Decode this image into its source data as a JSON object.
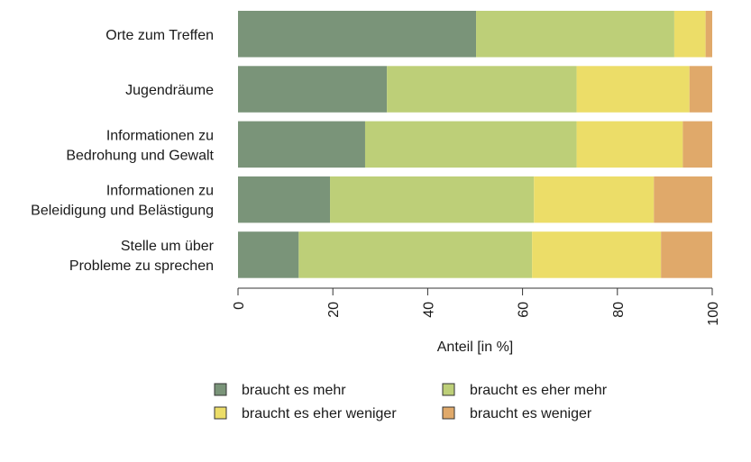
{
  "chart_data": {
    "type": "bar",
    "orientation": "horizontal",
    "stacked": true,
    "categories": [
      [
        "Orte zum Treffen"
      ],
      [
        "Jugendräume"
      ],
      [
        "Informationen zu",
        "Bedrohung und Gewalt"
      ],
      [
        "Informationen zu",
        "Beleidigung und Belästigung"
      ],
      [
        "Stelle um über",
        "Probleme zu sprechen"
      ]
    ],
    "series": [
      {
        "name": "braucht es mehr",
        "color": "#7a9479",
        "values": [
          50.2,
          31.4,
          26.8,
          19.4,
          12.8
        ]
      },
      {
        "name": "braucht es eher mehr",
        "color": "#bdcf78",
        "values": [
          41.8,
          40.0,
          44.6,
          43.0,
          49.2
        ]
      },
      {
        "name": "braucht es eher weniger",
        "color": "#ecdd68",
        "values": [
          6.6,
          23.8,
          22.4,
          25.3,
          27.2
        ]
      },
      {
        "name": "braucht es weniger",
        "color": "#e0a96a",
        "values": [
          1.4,
          4.8,
          6.2,
          12.3,
          10.8
        ]
      }
    ],
    "xlim": [
      0,
      100
    ],
    "xticks": [
      "0",
      "20",
      "40",
      "60",
      "80",
      "100"
    ],
    "xlabel": "Anteil [in %]",
    "ylabel": "",
    "title": "",
    "grid": false,
    "legend_position": "bottom"
  }
}
